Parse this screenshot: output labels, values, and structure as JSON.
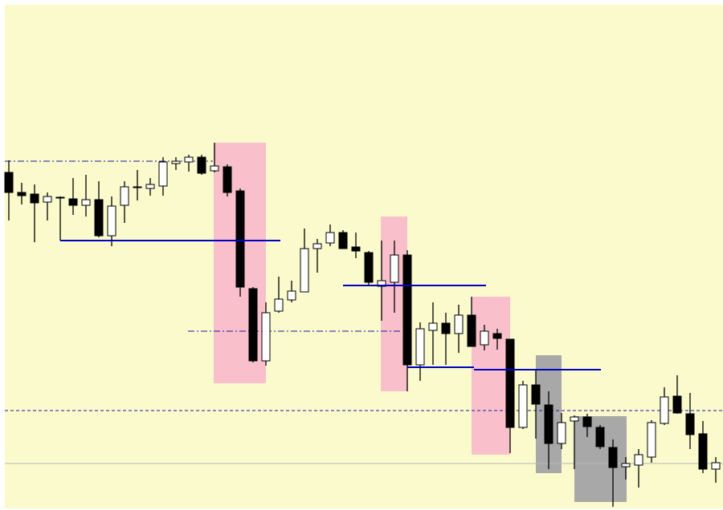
{
  "chart_data": {
    "type": "candlestick",
    "open": [
      421,
      396,
      394,
      384,
      390,
      388,
      380,
      387,
      342,
      380,
      402,
      401,
      404,
      432,
      434,
      440,
      423,
      428,
      398,
      276,
      186,
      248,
      262,
      272,
      326,
      333,
      346,
      328,
      321,
      279,
      284,
      318,
      181,
      224,
      233,
      220,
      243,
      206,
      220,
      213,
      103,
      156,
      131,
      83,
      111,
      116,
      103,
      78,
      54,
      56,
      66,
      108,
      142,
      120,
      95,
      51
    ],
    "high": [
      436,
      408,
      406,
      396,
      391,
      414,
      418,
      410,
      391,
      410,
      424,
      414,
      440,
      440,
      443,
      443,
      458,
      431,
      401,
      278,
      259,
      291,
      286,
      351,
      338,
      356,
      349,
      346,
      323,
      336,
      336,
      324,
      234,
      259,
      246,
      256,
      266,
      231,
      226,
      213,
      161,
      176,
      148,
      121,
      118,
      120,
      106,
      88,
      66,
      76,
      112,
      153,
      168,
      146,
      111,
      66
    ],
    "low": [
      361,
      381,
      334,
      361,
      336,
      368,
      366,
      340,
      329,
      358,
      386,
      392,
      392,
      424,
      422,
      418,
      421,
      391,
      266,
      184,
      180,
      246,
      259,
      272,
      296,
      329,
      326,
      314,
      281,
      236,
      246,
      148,
      161,
      181,
      181,
      196,
      204,
      199,
      200,
      71,
      101,
      89,
      51,
      76,
      51,
      91,
      76,
      4,
      38,
      28,
      59,
      106,
      120,
      76,
      46,
      34
    ],
    "close": [
      396,
      392,
      383,
      391,
      390,
      380,
      387,
      342,
      379,
      403,
      403,
      406,
      434,
      435,
      440,
      420,
      429,
      396,
      278,
      186,
      246,
      263,
      273,
      326,
      332,
      346,
      326,
      323,
      284,
      286,
      318,
      181,
      226,
      233,
      220,
      243,
      204,
      223,
      214,
      103,
      156,
      132,
      83,
      109,
      116,
      104,
      79,
      53,
      58,
      69,
      109,
      141,
      121,
      94,
      51,
      59
    ],
    "up_color": "#ffffff",
    "down_color": "#000000",
    "ylim": [
      2,
      630
    ]
  }
}
